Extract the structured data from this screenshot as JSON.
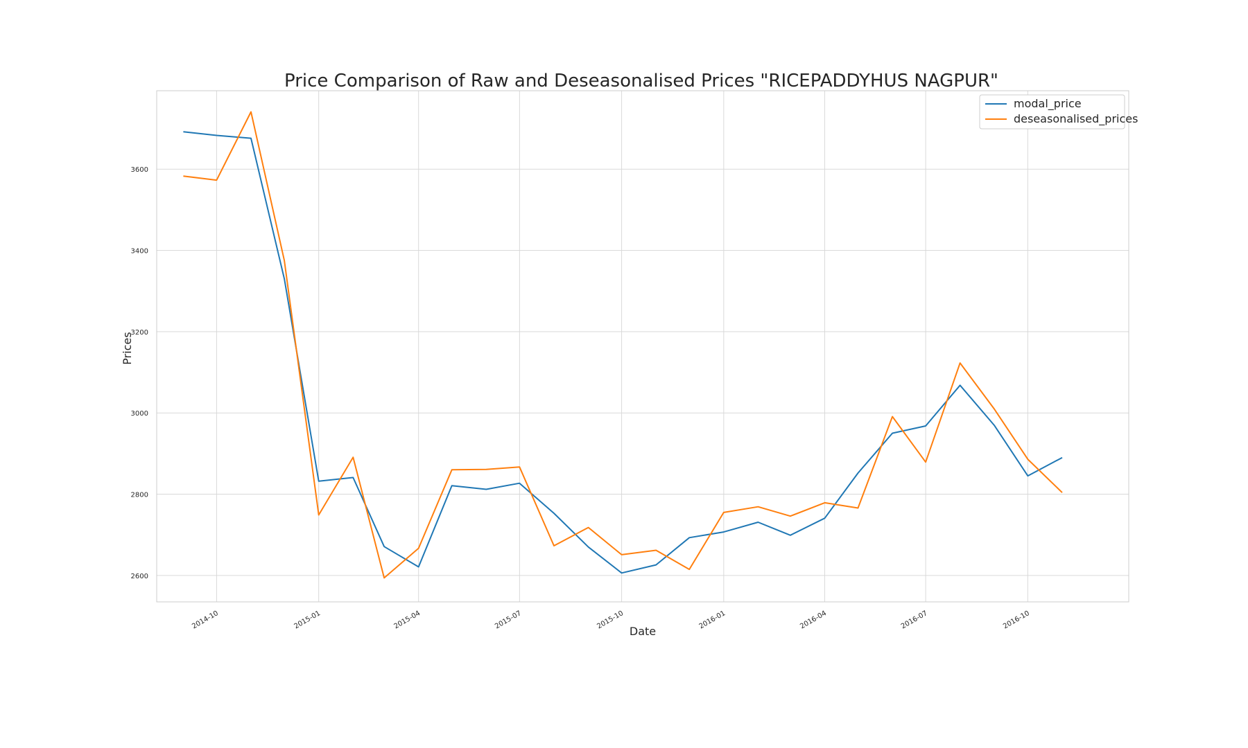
{
  "chart_data": {
    "type": "line",
    "title": "Price Comparison of Raw and Deseasonalised Prices \"RICEPADDYHUS NAGPUR\"",
    "xlabel": "Date",
    "ylabel": "Prices",
    "x_ticks": [
      "2014-10",
      "2015-01",
      "2015-04",
      "2015-07",
      "2015-10",
      "2016-01",
      "2016-04",
      "2016-07",
      "2016-10"
    ],
    "y_ticks": [
      2600,
      2800,
      3000,
      3200,
      3400,
      3600
    ],
    "xlim": [
      "2014-08-08",
      "2016-12-31"
    ],
    "ylim": [
      2535,
      3793
    ],
    "grid": true,
    "legend_position": "top-right",
    "x": [
      "2014-09-01",
      "2014-10-01",
      "2014-11-01",
      "2014-12-01",
      "2015-01-01",
      "2015-02-01",
      "2015-03-01",
      "2015-04-01",
      "2015-05-01",
      "2015-06-01",
      "2015-07-01",
      "2015-08-01",
      "2015-09-01",
      "2015-10-01",
      "2015-11-01",
      "2015-12-01",
      "2016-01-01",
      "2016-02-01",
      "2016-03-01",
      "2016-04-01",
      "2016-05-01",
      "2016-06-01",
      "2016-07-01",
      "2016-08-01",
      "2016-09-01",
      "2016-10-01",
      "2016-11-01"
    ],
    "series": [
      {
        "name": "modal_price",
        "color": "#1f77b4",
        "values": [
          3692,
          3683,
          3676,
          3330,
          2832,
          2841,
          2671,
          2621,
          2821,
          2812,
          2827,
          2753,
          2670,
          2606,
          2626,
          2693,
          2707,
          2731,
          2699,
          2741,
          2852,
          2950,
          2968,
          3068,
          2969,
          2845,
          2890
        ]
      },
      {
        "name": "deseasonalised_prices",
        "color": "#ff7f0e",
        "values": [
          3583,
          3573,
          3741,
          3375,
          2749,
          2891,
          2594,
          2667,
          2860,
          2861,
          2867,
          2673,
          2718,
          2651,
          2662,
          2615,
          2755,
          2769,
          2746,
          2779,
          2766,
          2991,
          2879,
          3123,
          3009,
          2886,
          2804
        ]
      }
    ]
  }
}
